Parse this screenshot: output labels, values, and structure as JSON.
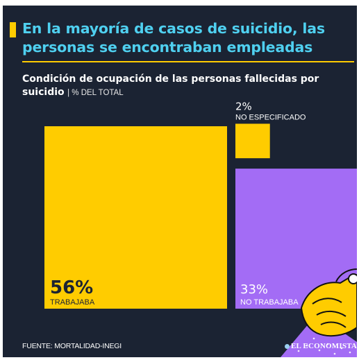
{
  "headline": {
    "line1": "En la mayoría de casos de suicidio, las",
    "line2": "personas se encontraban empleadas"
  },
  "subtitle": {
    "line1": "Condición de ocupación de las personas fallecidas por",
    "line2_main": "suicidio",
    "unit": "| % DEL TOTAL"
  },
  "colors": {
    "background": "#1b2333",
    "headline": "#4fd0f0",
    "accent": "#ffcc00",
    "trabajaba": "#ffcc00",
    "no_trabajaba": "#a36cf5",
    "no_especificado": "#ffcc00"
  },
  "chart_data": {
    "type": "area-squares",
    "title": "Condición de ocupación de las personas fallecidas por suicidio",
    "unit": "% DEL TOTAL",
    "categories": [
      "TRABAJABA",
      "NO TRABAJABA",
      "NO ESPECIFICADO"
    ],
    "values": [
      56,
      33,
      2
    ],
    "value_labels": [
      "56%",
      "33%",
      "2%"
    ]
  },
  "footer": {
    "source": "FUENTE: MORTALIDAD-INEGI",
    "brand": "EL ECONOMISTA"
  },
  "icons": [
    "handshake-illustration",
    "brand-logo-icon"
  ]
}
